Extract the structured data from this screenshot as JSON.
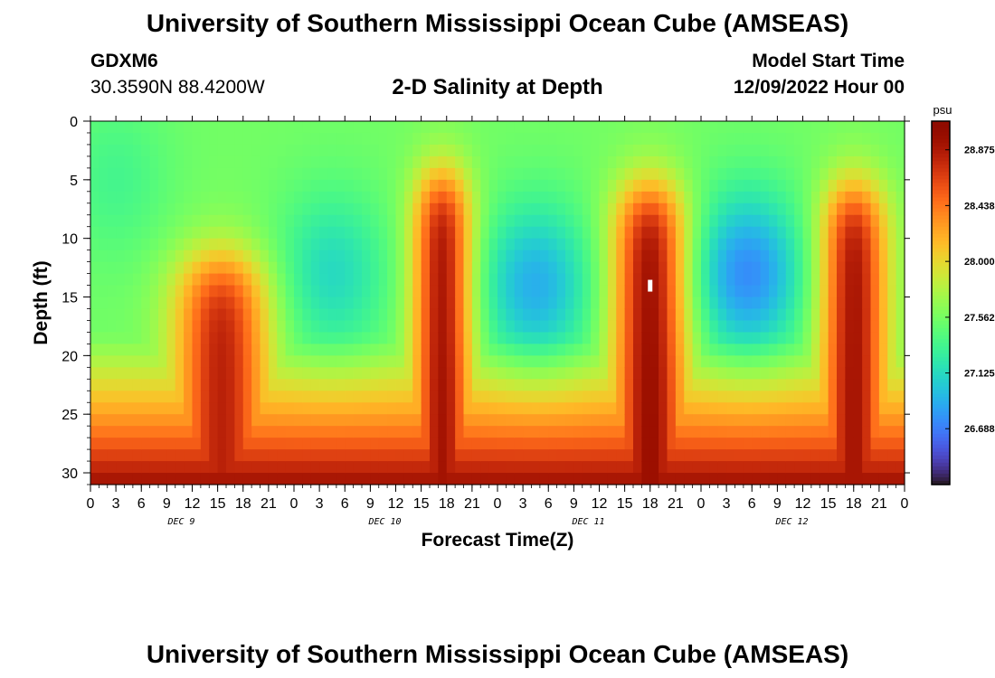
{
  "header": {
    "title": "University of Southern Mississippi Ocean Cube (AMSEAS)",
    "station_id": "GDXM6",
    "coordinates": "30.3590N  88.4200W",
    "subtitle": "2-D Salinity at Depth",
    "model_start_label": "Model Start Time",
    "model_start_value": "12/09/2022 Hour 00"
  },
  "footer": {
    "title": "University of Southern Mississippi Ocean Cube (AMSEAS)"
  },
  "chart_data": {
    "type": "heatmap",
    "title": "2-D Salinity at Depth",
    "xlabel": "Forecast Time(Z)",
    "ylabel": "Depth (ft)",
    "x_range_hours": [
      0,
      96
    ],
    "y_range_ft": [
      0,
      31
    ],
    "x_tick_labels": [
      "0",
      "3",
      "6",
      "9",
      "12",
      "15",
      "18",
      "21",
      "0",
      "3",
      "6",
      "9",
      "12",
      "15",
      "18",
      "21",
      "0",
      "3",
      "6",
      "9",
      "12",
      "15",
      "18",
      "21",
      "0",
      "3",
      "6",
      "9",
      "12",
      "15",
      "18",
      "21",
      "0"
    ],
    "y_tick_labels": [
      "0",
      "5",
      "10",
      "15",
      "20",
      "25",
      "30"
    ],
    "y_tick_values": [
      0,
      5,
      10,
      15,
      20,
      25,
      30
    ],
    "day_labels": [
      "DEC 9",
      "DEC 10",
      "DEC 11",
      "DEC 12"
    ],
    "colorbar": {
      "unit": "psu",
      "min": 26.25,
      "max": 29.1,
      "tick_labels": [
        "28.875",
        "28.438",
        "28.000",
        "27.562",
        "27.125",
        "26.688"
      ],
      "tick_values": [
        28.875,
        28.438,
        28.0,
        27.562,
        27.125,
        26.688
      ]
    },
    "bottom_salinity_psu": 28.95,
    "surface_salinity_psu": 27.55,
    "salinity_pulses": [
      {
        "center_hour": 15.5,
        "width_hours": 5.6,
        "peak_psu": 28.82,
        "peak_depth_ft": 20
      },
      {
        "center_hour": 41.5,
        "width_hours": 3.5,
        "peak_psu": 28.92,
        "peak_depth_ft": 13
      },
      {
        "center_hour": 66.0,
        "width_hours": 4.4,
        "peak_psu": 28.98,
        "peak_depth_ft": 14
      },
      {
        "center_hour": 90.0,
        "width_hours": 3.9,
        "peak_psu": 28.92,
        "peak_depth_ft": 14
      }
    ],
    "fresh_minima": [
      {
        "center_hour": 3.0,
        "depth_ft": 5,
        "min_psu": 27.35
      },
      {
        "center_hour": 28.5,
        "depth_ft": 13,
        "min_psu": 27.12
      },
      {
        "center_hour": 52.5,
        "depth_ft": 14,
        "min_psu": 26.9
      },
      {
        "center_hour": 77.5,
        "depth_ft": 13,
        "min_psu": 26.75
      }
    ],
    "marker": {
      "hour": 66.0,
      "depth_ft": 14.0
    }
  }
}
